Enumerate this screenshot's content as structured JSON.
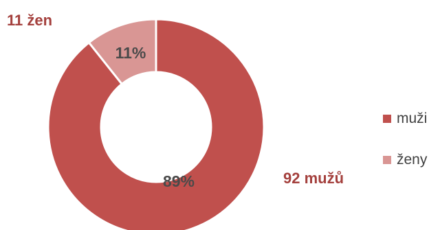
{
  "chart_data": {
    "type": "pie",
    "variant": "donut",
    "legend_position": "right",
    "series": [
      {
        "name": "muži",
        "value": 92,
        "percent_label": "89%",
        "count_label": "92 mužů",
        "color": "#C0504D"
      },
      {
        "name": "ženy",
        "value": 11,
        "percent_label": "11%",
        "count_label": "11 žen",
        "color": "#D99694"
      }
    ],
    "label_color": "#4A4A4A",
    "count_label_color": "#A4403D"
  }
}
